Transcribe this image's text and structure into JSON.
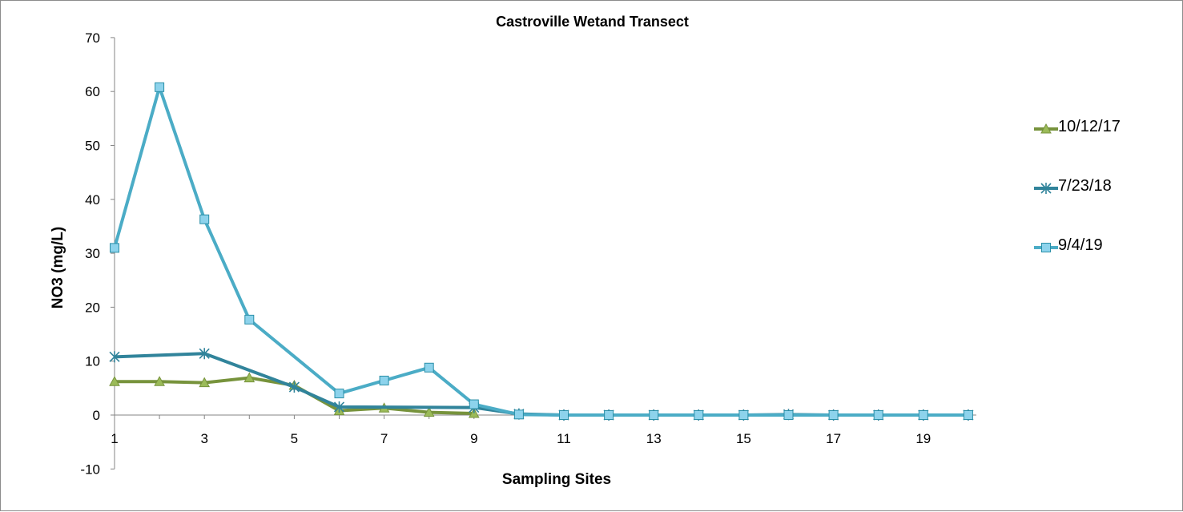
{
  "chart_data": {
    "type": "line",
    "title": "Castroville Wetand Transect",
    "xlabel": "Sampling Sites",
    "ylabel": "NO3 (mg/L)",
    "ylim": [
      -10,
      70
    ],
    "yticks": [
      -10,
      0,
      10,
      20,
      30,
      40,
      50,
      60,
      70
    ],
    "xlim": [
      1,
      20
    ],
    "xticks": [
      1,
      3,
      5,
      7,
      9,
      11,
      13,
      15,
      17,
      19
    ],
    "grid": false,
    "legend_position": "right",
    "series": [
      {
        "name": "10/12/17",
        "color": "#77933c",
        "marker": "triangle",
        "x": [
          1,
          2,
          3,
          4,
          5,
          6,
          7,
          8,
          9
        ],
        "values": [
          6.2,
          6.2,
          6.0,
          6.9,
          5.5,
          0.8,
          1.3,
          0.5,
          0.3
        ]
      },
      {
        "name": "7/23/18",
        "color": "#31849b",
        "marker": "star",
        "x": [
          1,
          3,
          5,
          6,
          9,
          10,
          11,
          12,
          13,
          14,
          15,
          16,
          17,
          18,
          19,
          20
        ],
        "values": [
          10.8,
          11.4,
          5.2,
          1.5,
          1.4,
          0.2,
          0.0,
          0.0,
          0.0,
          0.0,
          0.0,
          0.1,
          0.0,
          0.0,
          0.0,
          0.0
        ]
      },
      {
        "name": "9/4/19",
        "color": "#4bacc6",
        "marker": "square",
        "x": [
          1,
          2,
          3,
          4,
          6,
          7,
          8,
          9,
          10,
          11,
          12,
          13,
          14,
          15,
          16,
          17,
          18,
          19,
          20
        ],
        "values": [
          31.0,
          60.8,
          36.3,
          17.7,
          4.0,
          6.4,
          8.8,
          2.0,
          0.1,
          0.0,
          0.0,
          0.0,
          0.0,
          0.0,
          0.0,
          0.0,
          0.0,
          0.0,
          0.0
        ]
      }
    ]
  }
}
